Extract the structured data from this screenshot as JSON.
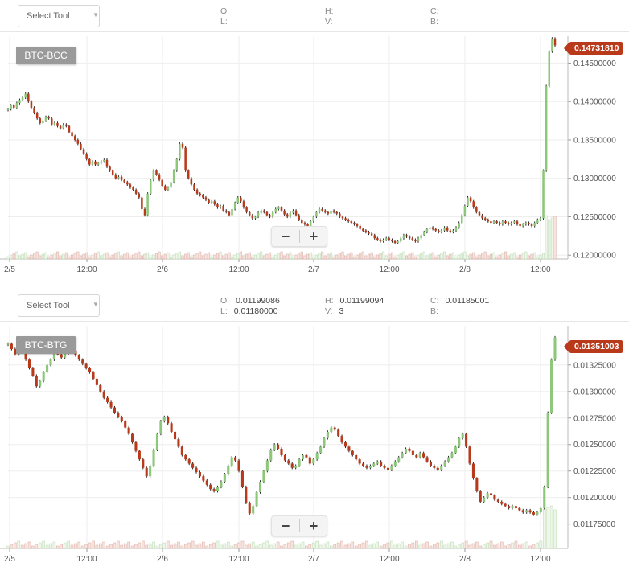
{
  "colors": {
    "up": "#8cc77a",
    "down": "#b93a1b",
    "grid": "#eeeeee",
    "flag": "#b93a1b",
    "label_bg": "#9a9a9a"
  },
  "panels": [
    {
      "toolbar": {
        "select_tool": "Select Tool",
        "ohlc": {
          "o_label": "O:",
          "o_value": "",
          "h_label": "H:",
          "h_value": "",
          "c_label": "C:",
          "c_value": "",
          "l_label": "L:",
          "l_value": "",
          "v_label": "V:",
          "v_value": "",
          "b_label": "B:",
          "b_value": ""
        }
      },
      "pair": "BTC-BCC",
      "last_price": "0.14731810",
      "zoom": {
        "minus": "−",
        "plus": "+"
      }
    },
    {
      "toolbar": {
        "select_tool": "Select Tool",
        "ohlc": {
          "o_label": "O:",
          "o_value": "0.01199086",
          "h_label": "H:",
          "h_value": "0.01199094",
          "c_label": "C:",
          "c_value": "0.01185001",
          "l_label": "L:",
          "l_value": "0.01180000",
          "v_label": "V:",
          "v_value": "3",
          "b_label": "B:",
          "b_value": ""
        }
      },
      "pair": "BTC-BTG",
      "last_price": "0.01351003",
      "zoom": {
        "minus": "−",
        "plus": "+"
      }
    }
  ],
  "chart_data": [
    {
      "type": "candlestick",
      "pair": "BTC-BCC",
      "last_price": 0.1473181,
      "x_ticks": [
        "2/5",
        "12:00",
        "2/6",
        "12:00",
        "2/7",
        "12:00",
        "2/8",
        "12:00"
      ],
      "y_ticks": [
        "0.14500000",
        "0.14000000",
        "0.13500000",
        "0.13000000",
        "0.12500000",
        "0.12000000"
      ],
      "ylim": [
        0.1195,
        0.1485
      ],
      "grid": true,
      "close": [
        0.139,
        0.1395,
        0.1392,
        0.1398,
        0.1402,
        0.1405,
        0.141,
        0.14,
        0.1392,
        0.1385,
        0.1378,
        0.1372,
        0.1375,
        0.138,
        0.1378,
        0.137,
        0.1372,
        0.1368,
        0.1365,
        0.137,
        0.1368,
        0.136,
        0.1355,
        0.135,
        0.1345,
        0.1338,
        0.1332,
        0.1325,
        0.1318,
        0.1322,
        0.1318,
        0.132,
        0.1322,
        0.1324,
        0.1315,
        0.131,
        0.1305,
        0.13,
        0.1302,
        0.1298,
        0.1295,
        0.1292,
        0.1288,
        0.1285,
        0.128,
        0.1275,
        0.126,
        0.1252,
        0.128,
        0.1298,
        0.131,
        0.1305,
        0.1298,
        0.129,
        0.1285,
        0.1288,
        0.1295,
        0.131,
        0.1325,
        0.1345,
        0.134,
        0.131,
        0.13,
        0.1292,
        0.1285,
        0.128,
        0.1278,
        0.1275,
        0.1272,
        0.1268,
        0.127,
        0.1266,
        0.1262,
        0.1264,
        0.1258,
        0.1256,
        0.1252,
        0.126,
        0.1268,
        0.1275,
        0.127,
        0.1262,
        0.1256,
        0.1252,
        0.1248,
        0.125,
        0.1255,
        0.1258,
        0.1256,
        0.1252,
        0.125,
        0.1256,
        0.126,
        0.1262,
        0.1258,
        0.1253,
        0.125,
        0.1255,
        0.1258,
        0.1252,
        0.1246,
        0.1242,
        0.124,
        0.1238,
        0.1244,
        0.125,
        0.1256,
        0.126,
        0.1258,
        0.1256,
        0.1254,
        0.1258,
        0.1256,
        0.1254,
        0.125,
        0.1248,
        0.1246,
        0.1244,
        0.1242,
        0.124,
        0.1238,
        0.1234,
        0.1232,
        0.123,
        0.1228,
        0.1226,
        0.1222,
        0.122,
        0.1218,
        0.122,
        0.1222,
        0.122,
        0.1218,
        0.1216,
        0.1218,
        0.1222,
        0.1226,
        0.1224,
        0.1222,
        0.122,
        0.1218,
        0.1222,
        0.1226,
        0.123,
        0.1234,
        0.1236,
        0.1234,
        0.1232,
        0.123,
        0.1232,
        0.1236,
        0.1232,
        0.123,
        0.1232,
        0.1236,
        0.1242,
        0.1252,
        0.1264,
        0.1275,
        0.127,
        0.1262,
        0.1256,
        0.1252,
        0.1248,
        0.1246,
        0.1244,
        0.1242,
        0.1244,
        0.1242,
        0.124,
        0.1244,
        0.1242,
        0.124,
        0.1242,
        0.1244,
        0.124,
        0.1238,
        0.124,
        0.1242,
        0.124,
        0.1238,
        0.1242,
        0.1246,
        0.1248,
        0.131,
        0.142,
        0.1465,
        0.1482,
        0.1473
      ]
    },
    {
      "type": "candlestick",
      "pair": "BTC-BTG",
      "last_price": 0.01351003,
      "x_ticks": [
        "2/5",
        "12:00",
        "2/6",
        "12:00",
        "2/7",
        "12:00",
        "2/8",
        "12:00"
      ],
      "y_ticks": [
        "0.01325000",
        "0.01300000",
        "0.01275000",
        "0.01250000",
        "0.01225000",
        "0.01200000",
        "0.01175000"
      ],
      "ylim": [
        0.01152,
        0.01362
      ],
      "grid": true,
      "ohlc_readout": {
        "open": 0.01199086,
        "high": 0.01199094,
        "close": 0.01185001,
        "low": 0.0118,
        "volume": 3
      },
      "close": [
        0.01345,
        0.0134,
        0.01335,
        0.01342,
        0.01338,
        0.0133,
        0.01322,
        0.01315,
        0.01305,
        0.0131,
        0.01318,
        0.01325,
        0.0133,
        0.01338,
        0.01335,
        0.01332,
        0.01336,
        0.0134,
        0.01338,
        0.01334,
        0.0133,
        0.01326,
        0.01322,
        0.01318,
        0.01312,
        0.01306,
        0.013,
        0.01294,
        0.0129,
        0.01285,
        0.0128,
        0.01276,
        0.01272,
        0.01266,
        0.0126,
        0.01252,
        0.01244,
        0.01236,
        0.01228,
        0.0122,
        0.0123,
        0.01245,
        0.0126,
        0.01272,
        0.01276,
        0.0127,
        0.01262,
        0.01255,
        0.01248,
        0.0124,
        0.01236,
        0.01232,
        0.01228,
        0.01224,
        0.0122,
        0.01216,
        0.01212,
        0.01208,
        0.01206,
        0.0121,
        0.01215,
        0.01222,
        0.0123,
        0.01238,
        0.01235,
        0.01225,
        0.0121,
        0.01195,
        0.01185,
        0.01192,
        0.01205,
        0.01215,
        0.01225,
        0.01235,
        0.01245,
        0.0125,
        0.01246,
        0.0124,
        0.01235,
        0.01232,
        0.01228,
        0.0123,
        0.01236,
        0.0124,
        0.01238,
        0.01232,
        0.01236,
        0.01242,
        0.01248,
        0.01256,
        0.01262,
        0.01266,
        0.01264,
        0.01258,
        0.01252,
        0.01248,
        0.01244,
        0.0124,
        0.01236,
        0.01232,
        0.0123,
        0.01228,
        0.0123,
        0.01232,
        0.01234,
        0.0123,
        0.01228,
        0.01226,
        0.0123,
        0.01234,
        0.01238,
        0.01242,
        0.01246,
        0.01244,
        0.0124,
        0.01238,
        0.01242,
        0.01238,
        0.01234,
        0.0123,
        0.01228,
        0.01226,
        0.0123,
        0.01234,
        0.01238,
        0.01242,
        0.01248,
        0.01256,
        0.0126,
        0.01248,
        0.01232,
        0.01218,
        0.01206,
        0.01196,
        0.012,
        0.01204,
        0.01202,
        0.01198,
        0.01196,
        0.01194,
        0.01192,
        0.0119,
        0.01192,
        0.0119,
        0.01188,
        0.01186,
        0.01188,
        0.01186,
        0.01184,
        0.01186,
        0.0119,
        0.0121,
        0.0128,
        0.0133,
        0.01351
      ]
    }
  ]
}
